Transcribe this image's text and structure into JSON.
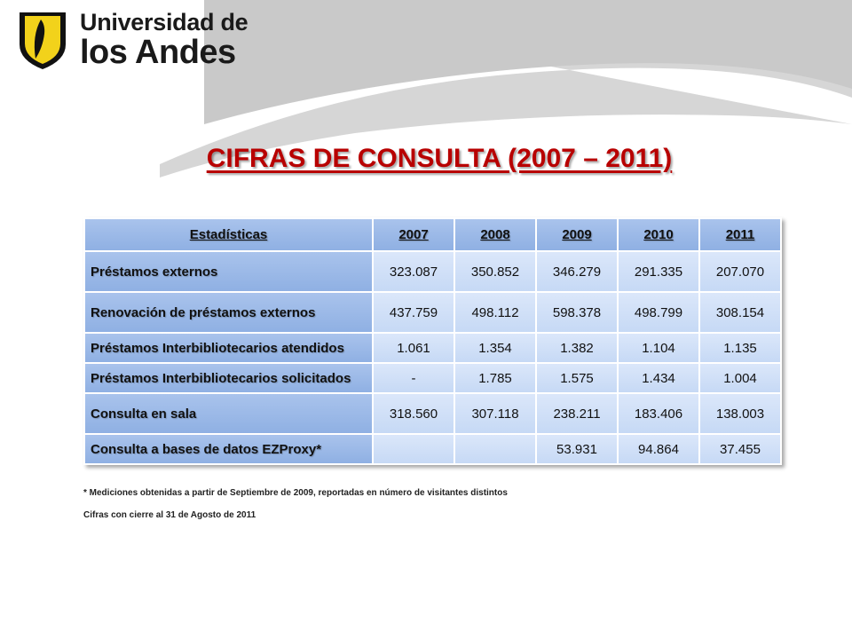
{
  "logo": {
    "line1": "Universidad de",
    "line2": "los Andes"
  },
  "title": "CIFRAS DE CONSULTA (2007 – 2011)",
  "table": {
    "headers": [
      "Estadísticas",
      "2007",
      "2008",
      "2009",
      "2010",
      "2011"
    ],
    "rows": [
      {
        "label": "Préstamos externos",
        "values": [
          "323.087",
          "350.852",
          "346.279",
          "291.335",
          "207.070"
        ]
      },
      {
        "label": "Renovación de préstamos externos",
        "values": [
          "437.759",
          "498.112",
          "598.378",
          "498.799",
          "308.154"
        ]
      },
      {
        "label": "Préstamos Interbibliotecarios atendidos",
        "values": [
          "1.061",
          "1.354",
          "1.382",
          "1.104",
          "1.135"
        ]
      },
      {
        "label": "Préstamos Interbibliotecarios solicitados",
        "values": [
          "-",
          "1.785",
          "1.575",
          "1.434",
          "1.004"
        ]
      },
      {
        "label": "Consulta en sala",
        "values": [
          "318.560",
          "307.118",
          "238.211",
          "183.406",
          "138.003"
        ]
      },
      {
        "label": "Consulta a bases de datos EZProxy*",
        "values": [
          "",
          "",
          "53.931",
          "94.864",
          "37.455"
        ]
      }
    ]
  },
  "footnote1": "* Mediciones obtenidas a partir de Septiembre de 2009, reportadas en número de visitantes distintos",
  "footnote2": "Cifras con cierre al 31 de Agosto de 2011",
  "colors": {
    "title": "#b80000",
    "header_fill": "#8fb0e3",
    "cell_fill": "#c6d9f5",
    "logo_yellow": "#f2d21b"
  }
}
